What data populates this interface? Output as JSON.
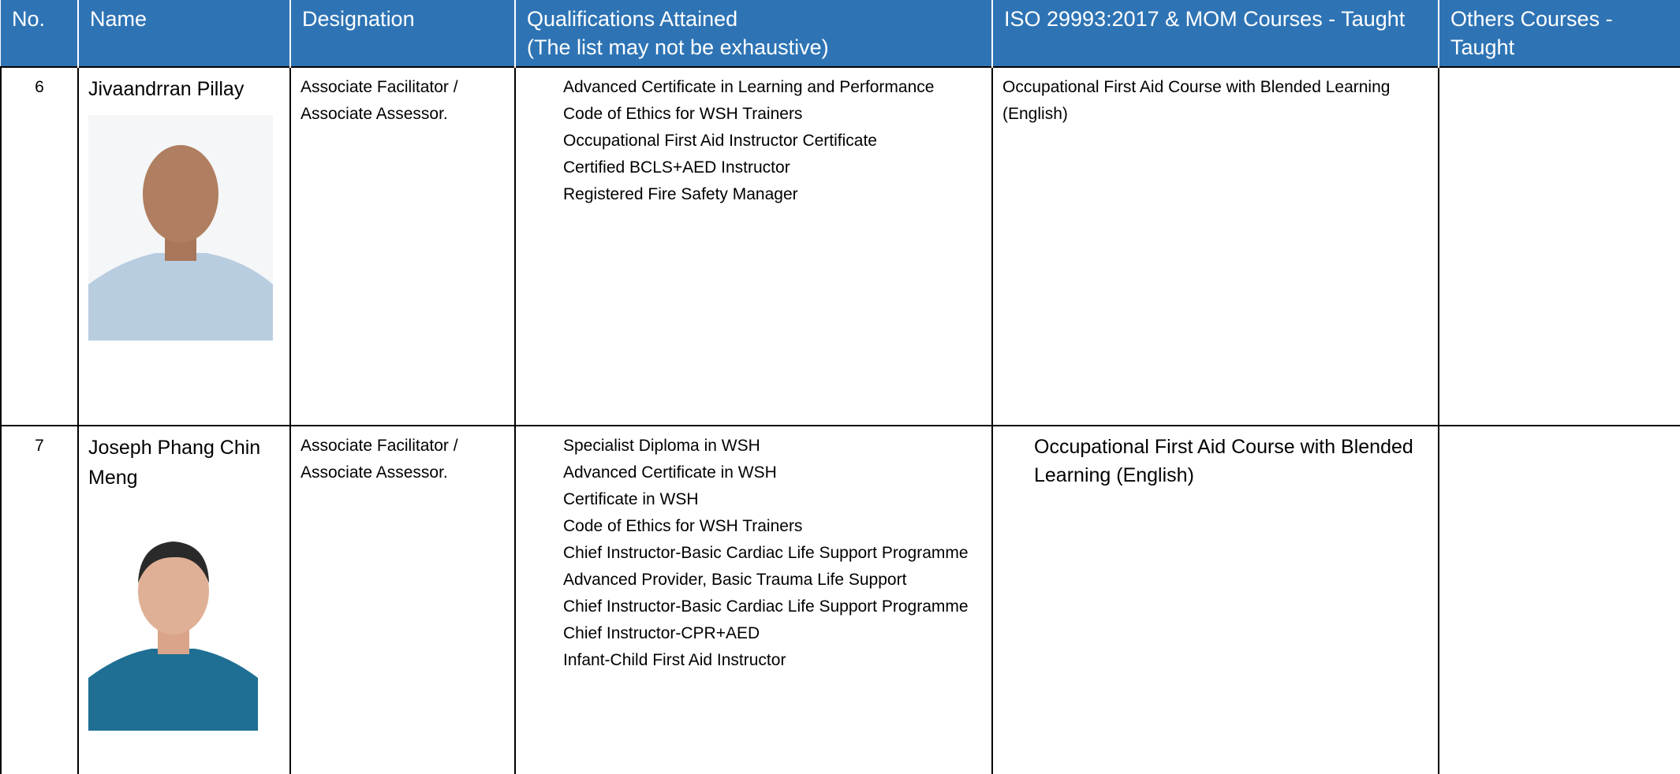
{
  "header": [
    "No.",
    "Name",
    "Designation",
    "Qualifications Attained\n(The list may not be exhaustive)",
    "ISO 29993:2017 & MOM Courses - Taught",
    "Others Courses - Taught"
  ],
  "rows": [
    {
      "no": "6",
      "name": "Jivaandrran Pillay",
      "designation": "Associate Facilitator / Associate Assessor.",
      "qualifications": [
        "Advanced Certificate in Learning and Performance",
        "Code of Ethics for WSH Trainers",
        "Occupational First Aid Instructor Certificate",
        "Certified BCLS+AED Instructor",
        "Registered Fire Safety Manager"
      ],
      "iso_text": "Occupational First Aid Course with Blended Learning (English)",
      "others": []
    },
    {
      "no": "7",
      "name": "Joseph Phang Chin Meng",
      "designation": "Associate Facilitator / Associate Assessor.",
      "qualifications": [
        "Specialist Diploma in WSH",
        "Advanced Certificate in WSH",
        "Certificate in WSH",
        "Code of Ethics for WSH Trainers",
        "Chief Instructor-Basic Cardiac Life Support Programme",
        "Advanced Provider, Basic Trauma Life Support",
        "Chief Instructor-Basic Cardiac Life Support Programme",
        "Chief Instructor-CPR+AED",
        "Infant-Child First Aid Instructor"
      ],
      "iso_items": [
        "Occupational First Aid Course with Blended Learning (English)"
      ],
      "others": []
    }
  ]
}
